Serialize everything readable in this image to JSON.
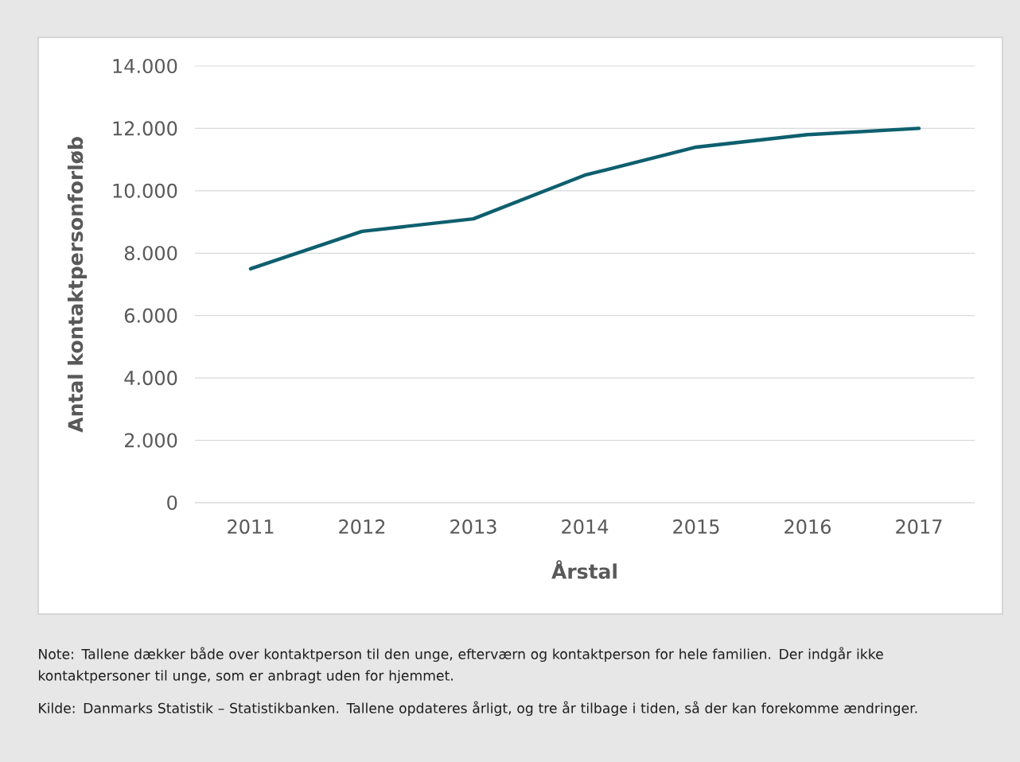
{
  "chart_data": {
    "type": "line",
    "categories": [
      "2011",
      "2012",
      "2013",
      "2014",
      "2015",
      "2016",
      "2017"
    ],
    "series": [
      {
        "color": "#0e5f6e",
        "values": [
          7500,
          8700,
          9100,
          10500,
          11400,
          11800,
          12000
        ]
      }
    ],
    "xlabel": "Årstal",
    "ylabel": "Antal kontaktpersonforløb",
    "ylim": [
      0,
      14000
    ],
    "yticks": [
      0,
      {
        "value": 2000,
        "label": "2.000"
      },
      {
        "value": 4000,
        "label": "4.000"
      },
      {
        "value": 6000,
        "label": "6.000"
      },
      {
        "value": 8000,
        "label": "8.000"
      },
      {
        "value": 10000,
        "label": "10.000"
      },
      {
        "value": 12000,
        "label": "12.000"
      },
      {
        "value": 14000,
        "label": "14.000"
      }
    ],
    "grid": "y",
    "marker": "none",
    "line_style": "solid",
    "annotations": [
      "Note: Tallene dækker både over kontaktperson til den unge, efterværn og kontaktperson for hele familien. Der indgår ikke kontaktpersoner til unge, som er anbragt uden for hjemmet.",
      "Kilde: Danmarks Statistik – Statistikbanken. Tallene opdateres årligt, og tre år tilbage i tiden, så der kan forekomme ændringer."
    ]
  }
}
